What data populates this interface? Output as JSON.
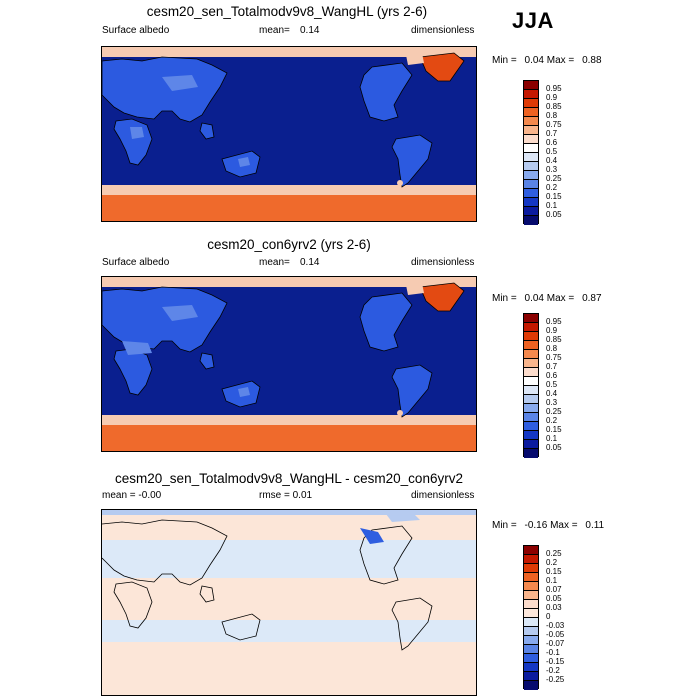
{
  "season": "JJA",
  "panels": [
    {
      "title": "cesm20_sen_Totalmodv9v8_WangHL (yrs 2-6)",
      "left_label": "Surface albedo",
      "mid_label": "mean=",
      "mid_value": "0.14",
      "right_label": "dimensionless",
      "min_label": "Min =",
      "min_value": "0.04",
      "max_label": "Max =",
      "max_value": "0.88",
      "colorbar": {
        "labels": [
          "0.95",
          "0.9",
          "0.85",
          "0.8",
          "0.75",
          "0.7",
          "0.6",
          "0.5",
          "0.4",
          "0.3",
          "0.25",
          "0.2",
          "0.15",
          "0.1",
          "0.05"
        ],
        "colors": [
          "#8b0000",
          "#c41800",
          "#df3a05",
          "#ee6222",
          "#f4894e",
          "#f9b58c",
          "#fcdccc",
          "#ffffff",
          "#dde7f7",
          "#b6cbf0",
          "#88aaee",
          "#5a84e6",
          "#2f5ee0",
          "#1437c4",
          "#0b1b9e",
          "#060b6e"
        ]
      },
      "fills": {
        "ocean": "#0a1f8f",
        "land": "#2c5ae0",
        "land_hi": "#5e86e8",
        "ice": "#ef6a2c",
        "snow": "#f6cbb2",
        "green": "#e34a12"
      }
    },
    {
      "title": "cesm20_con6yrv2 (yrs 2-6)",
      "left_label": "Surface albedo",
      "mid_label": "mean=",
      "mid_value": "0.14",
      "right_label": "dimensionless",
      "min_label": "Min =",
      "min_value": "0.04",
      "max_label": "Max =",
      "max_value": "0.87",
      "colorbar": {
        "labels": [
          "0.95",
          "0.9",
          "0.85",
          "0.8",
          "0.75",
          "0.7",
          "0.6",
          "0.5",
          "0.4",
          "0.3",
          "0.25",
          "0.2",
          "0.15",
          "0.1",
          "0.05"
        ],
        "colors": [
          "#8b0000",
          "#c41800",
          "#df3a05",
          "#ee6222",
          "#f4894e",
          "#f9b58c",
          "#fcdccc",
          "#ffffff",
          "#dde7f7",
          "#b6cbf0",
          "#88aaee",
          "#5a84e6",
          "#2f5ee0",
          "#1437c4",
          "#0b1b9e",
          "#060b6e"
        ]
      },
      "fills": {
        "ocean": "#0a1f8f",
        "land": "#2c5ae0",
        "land_hi": "#5e86e8",
        "ice": "#ef6a2c",
        "snow": "#f6cbb2",
        "green": "#e34a12"
      }
    },
    {
      "title": "cesm20_sen_Totalmodv9v8_WangHL - cesm20_con6yrv2",
      "left_label": "mean = ",
      "left_value": "-0.00",
      "mid_label": "rmse = ",
      "mid_value": "0.01",
      "right_label": "dimensionless",
      "min_label": "Min =",
      "min_value": "-0.16",
      "max_label": "Max =",
      "max_value": "0.11",
      "colorbar": {
        "labels": [
          "0.25",
          "0.2",
          "0.15",
          "0.1",
          "0.07",
          "0.05",
          "0.03",
          "0",
          "-0.03",
          "-0.05",
          "-0.07",
          "-0.1",
          "-0.15",
          "-0.2",
          "-0.25"
        ],
        "colors": [
          "#8b0000",
          "#c41800",
          "#df3a05",
          "#ee6222",
          "#f4894e",
          "#f9b58c",
          "#fcdccc",
          "#fde8dc",
          "#dce9f8",
          "#b6cbf0",
          "#88aaee",
          "#5a84e6",
          "#2f5ee0",
          "#1437c4",
          "#0b1b9e",
          "#060b6e"
        ]
      },
      "fills": {
        "ocean": "#fce6d8",
        "land": "#dce9f8",
        "land_hi": "#b6cbf0",
        "ice": "#fce6d8",
        "snow": "#dce9f8",
        "green": "#2f5ee0"
      }
    }
  ]
}
